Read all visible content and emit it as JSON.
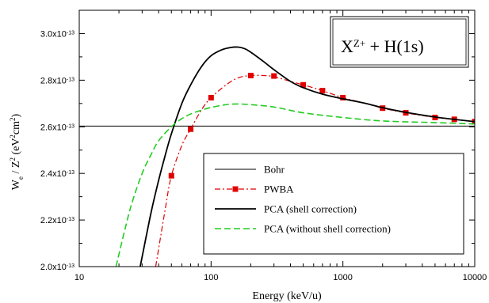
{
  "chart_data": {
    "type": "line",
    "title_box": {
      "main": "X",
      "sup": "Z+",
      "rest": " + H(1s)"
    },
    "xlabel": "Energy (keV/u)",
    "ylabel": {
      "w": "W",
      "e": "e",
      "mid": " / Z",
      "two": "2",
      "unit_open": " (eV",
      "unit_two": "2",
      "unit_cm": "cm",
      "unit_cm2": "2",
      "unit_close": ")"
    },
    "x_scale": "log",
    "xlim": [
      10,
      10000
    ],
    "ylim": [
      2e-13,
      3.1e-13
    ],
    "x_ticks": [
      {
        "value": 10,
        "label": "10"
      },
      {
        "value": 100,
        "label": "100"
      },
      {
        "value": 1000,
        "label": "1000"
      },
      {
        "value": 10000,
        "label": "10000"
      }
    ],
    "y_ticks": [
      {
        "value": 2e-13,
        "mant": "2.0x10",
        "exp": "-13"
      },
      {
        "value": 2.2e-13,
        "mant": "2.2x10",
        "exp": "-13"
      },
      {
        "value": 2.4e-13,
        "mant": "2.4x10",
        "exp": "-13"
      },
      {
        "value": 2.6e-13,
        "mant": "2.6x10",
        "exp": "-13"
      },
      {
        "value": 2.8e-13,
        "mant": "2.8x10",
        "exp": "-13"
      },
      {
        "value": 3e-13,
        "mant": "3.0x10",
        "exp": "-13"
      }
    ],
    "legend_position": "bottom-right",
    "series": [
      {
        "name": "Bohr",
        "color": "#000000",
        "style": "solid-thin",
        "x": [
          10,
          10000
        ],
        "y": [
          2.603e-13,
          2.603e-13
        ]
      },
      {
        "name": "PWBA",
        "color": "#e00000",
        "style": "dashdot-markers",
        "x": [
          38,
          45,
          50,
          60,
          70,
          85,
          100,
          130,
          160,
          200,
          250,
          300,
          400,
          500,
          700,
          1000,
          1500,
          2000,
          3000,
          5000,
          7000,
          10000
        ],
        "y": [
          2e-13,
          2.25e-13,
          2.39e-13,
          2.52e-13,
          2.59e-13,
          2.675e-13,
          2.725e-13,
          2.78e-13,
          2.81e-13,
          2.82e-13,
          2.82e-13,
          2.815e-13,
          2.795e-13,
          2.78e-13,
          2.755e-13,
          2.725e-13,
          2.7e-13,
          2.68e-13,
          2.66e-13,
          2.64e-13,
          2.632e-13,
          2.622e-13
        ],
        "marker_x": [
          50,
          70,
          100,
          200,
          300,
          500,
          700,
          1000,
          2000,
          3000,
          5000,
          7000,
          10000
        ],
        "marker_y": [
          2.39e-13,
          2.59e-13,
          2.725e-13,
          2.82e-13,
          2.818e-13,
          2.78e-13,
          2.755e-13,
          2.725e-13,
          2.68e-13,
          2.66e-13,
          2.64e-13,
          2.632e-13,
          2.622e-13
        ]
      },
      {
        "name": "PCA (shell correction)",
        "color": "#000000",
        "style": "solid-thick",
        "x": [
          29,
          35,
          40,
          45,
          50,
          60,
          70,
          85,
          100,
          120,
          140,
          160,
          180,
          200,
          250,
          300,
          400,
          500,
          700,
          1000,
          1500,
          2000,
          3000,
          5000,
          7000,
          10000
        ],
        "y": [
          2e-13,
          2.23e-13,
          2.37e-13,
          2.48e-13,
          2.57e-13,
          2.7e-13,
          2.78e-13,
          2.86e-13,
          2.905e-13,
          2.93e-13,
          2.94e-13,
          2.942e-13,
          2.935e-13,
          2.92e-13,
          2.88e-13,
          2.845e-13,
          2.795e-13,
          2.768e-13,
          2.74e-13,
          2.72e-13,
          2.7e-13,
          2.682e-13,
          2.662e-13,
          2.642e-13,
          2.632e-13,
          2.622e-13
        ]
      },
      {
        "name": "PCA (without shell correction)",
        "color": "#22cc22",
        "style": "dashed",
        "x": [
          19,
          22,
          25,
          30,
          35,
          40,
          50,
          60,
          70,
          85,
          100,
          130,
          160,
          200,
          300,
          500,
          1000,
          2000,
          5000,
          10000
        ],
        "y": [
          2e-13,
          2.15e-13,
          2.27e-13,
          2.4e-13,
          2.48e-13,
          2.54e-13,
          2.6e-13,
          2.635e-13,
          2.655e-13,
          2.672e-13,
          2.683e-13,
          2.695e-13,
          2.698e-13,
          2.695e-13,
          2.685e-13,
          2.66e-13,
          2.64e-13,
          2.625e-13,
          2.618e-13,
          2.612e-13
        ]
      }
    ]
  }
}
